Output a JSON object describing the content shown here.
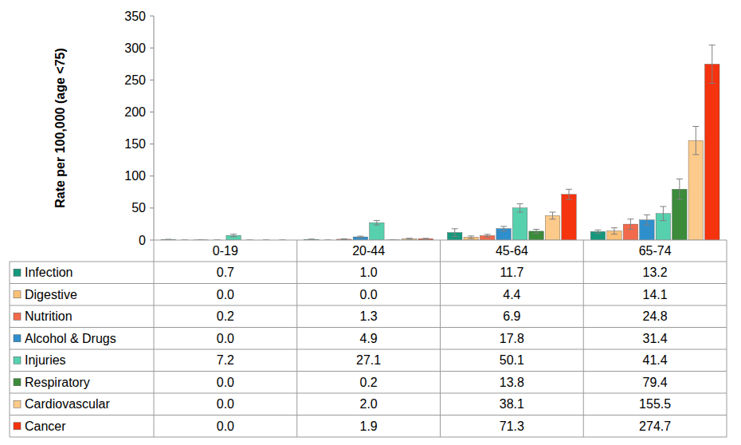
{
  "chart_data": {
    "type": "bar",
    "y_label": "Rate per 100,000 (age <75)",
    "categories": [
      "0-19",
      "20-44",
      "45-64",
      "65-74"
    ],
    "ylim": [
      0,
      350
    ],
    "yticks": [
      0,
      50,
      100,
      150,
      200,
      250,
      300,
      350
    ],
    "grid": false,
    "legend": "table",
    "series": [
      {
        "name": "Infection",
        "color": "#16987c",
        "values": [
          0.7,
          1.0,
          11.7,
          13.2
        ],
        "value_labels": [
          "0.7",
          "1.0",
          "11.7",
          "13.2"
        ],
        "errors": [
          0.5,
          0.5,
          6,
          2.5
        ]
      },
      {
        "name": "Digestive",
        "color": "#fbc077",
        "values": [
          0.0,
          0.0,
          4.4,
          14.1
        ],
        "value_labels": [
          "0.0",
          "0.0",
          "4.4",
          "14.1"
        ],
        "errors": [
          0,
          0,
          2,
          5
        ]
      },
      {
        "name": "Nutrition",
        "color": "#f26a4b",
        "values": [
          0.2,
          1.3,
          6.9,
          24.8
        ],
        "value_labels": [
          "0.2",
          "1.3",
          "6.9",
          "24.8"
        ],
        "errors": [
          0.2,
          0.6,
          2,
          8
        ]
      },
      {
        "name": "Alcohol & Drugs",
        "color": "#2f8fcc",
        "values": [
          0.0,
          4.9,
          17.8,
          31.4
        ],
        "value_labels": [
          "0.0",
          "4.9",
          "17.8",
          "31.4"
        ],
        "errors": [
          0,
          1.2,
          3.5,
          8
        ]
      },
      {
        "name": "Injuries",
        "color": "#57d0ae",
        "values": [
          7.2,
          27.1,
          50.1,
          41.4
        ],
        "value_labels": [
          "7.2",
          "27.1",
          "50.1",
          "41.4"
        ],
        "errors": [
          2,
          3.5,
          6.5,
          11
        ]
      },
      {
        "name": "Respiratory",
        "color": "#3b8b3b",
        "values": [
          0.0,
          0.2,
          13.8,
          79.4
        ],
        "value_labels": [
          "0.0",
          "0.2",
          "13.8",
          "79.4"
        ],
        "errors": [
          0,
          0.2,
          3,
          16
        ]
      },
      {
        "name": "Cardiovascular",
        "color": "#fcca8a",
        "values": [
          0.0,
          2.0,
          38.1,
          155.5
        ],
        "value_labels": [
          "0.0",
          "2.0",
          "38.1",
          "155.5"
        ],
        "errors": [
          0,
          0.8,
          5.5,
          22
        ]
      },
      {
        "name": "Cancer",
        "color": "#f5330f",
        "values": [
          0.0,
          1.9,
          71.3,
          274.7
        ],
        "value_labels": [
          "0.0",
          "1.9",
          "71.3",
          "274.7"
        ],
        "errors": [
          0,
          0.8,
          8,
          30
        ]
      }
    ]
  }
}
